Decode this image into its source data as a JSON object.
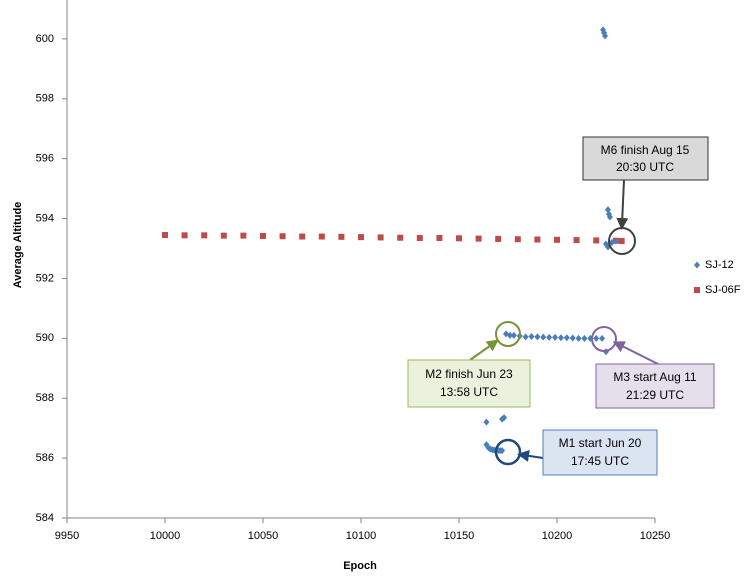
{
  "chart_data": {
    "type": "scatter",
    "x_label": "Epoch",
    "y_label": "Average Altitude",
    "xlim": [
      9950,
      10250
    ],
    "xticks": [
      9950,
      10000,
      10050,
      10100,
      10150,
      10200,
      10250
    ],
    "ylim": [
      584,
      602
    ],
    "yticks": [
      584,
      586,
      588,
      590,
      592,
      594,
      596,
      598,
      600
    ],
    "grid": false,
    "legend": "right",
    "series": [
      {
        "name": "SJ-12",
        "color": "#4a7ebb",
        "marker": "diamond",
        "x": [
          10165,
          10166,
          10167,
          10168,
          10169,
          10170,
          10171,
          10172,
          10164,
          10164,
          10172,
          10173,
          10174,
          10176,
          10178,
          10181,
          10184,
          10187,
          10190,
          10193,
          10196,
          10199,
          10202,
          10205,
          10208,
          10211,
          10214,
          10217,
          10220,
          10223,
          10225,
          10223.5,
          10224,
          10224.5,
          10226,
          10226.5,
          10227,
          10225,
          10226,
          10228,
          10230
        ],
        "values": [
          586.35,
          586.3,
          586.28,
          586.27,
          586.26,
          586.26,
          586.25,
          586.25,
          586.45,
          587.2,
          587.3,
          587.35,
          590.15,
          590.1,
          590.1,
          590.08,
          590.05,
          590.06,
          590.05,
          590.04,
          590.03,
          590.03,
          590.02,
          590.02,
          590.01,
          590.0,
          590.0,
          590.0,
          590.0,
          590.0,
          589.55,
          600.3,
          600.2,
          600.1,
          594.3,
          594.15,
          594.05,
          593.15,
          593.05,
          593.2,
          593.25
        ]
      },
      {
        "name": "SJ-06F",
        "color": "#be4b48",
        "marker": "square",
        "x": [
          10000,
          10010,
          10020,
          10030,
          10040,
          10050,
          10060,
          10070,
          10080,
          10090,
          10100,
          10110,
          10120,
          10130,
          10140,
          10150,
          10160,
          10170,
          10180,
          10190,
          10200,
          10210,
          10220,
          10230,
          10233
        ],
        "values": [
          593.45,
          593.44,
          593.44,
          593.43,
          593.43,
          593.42,
          593.41,
          593.4,
          593.4,
          593.39,
          593.38,
          593.37,
          593.36,
          593.35,
          593.35,
          593.34,
          593.33,
          593.32,
          593.31,
          593.3,
          593.29,
          593.28,
          593.27,
          593.26,
          593.25
        ]
      }
    ],
    "annotations": [
      {
        "lines": [
          "M6 finish Aug 15",
          "20:30 UTC"
        ]
      },
      {
        "lines": [
          "M2 finish Jun 23",
          "13:58 UTC"
        ]
      },
      {
        "lines": [
          "M3 start Aug 11",
          "21:29 UTC"
        ]
      },
      {
        "lines": [
          "M1 start Jun 20",
          "17:45 UTC"
        ]
      }
    ]
  }
}
